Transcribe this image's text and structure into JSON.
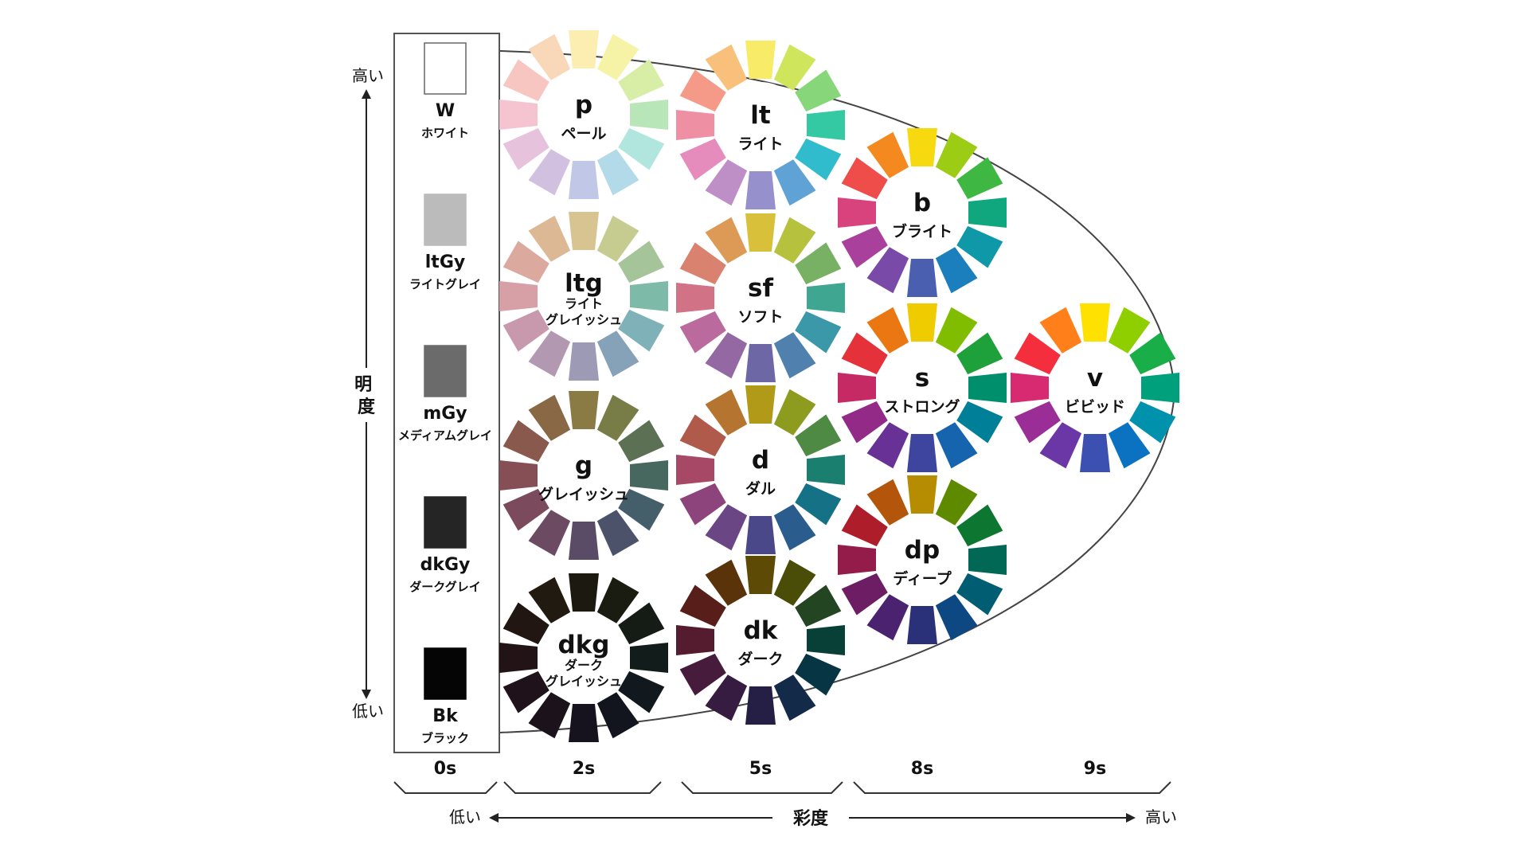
{
  "lightness_axis": {
    "label": "明度",
    "high": "高い",
    "low": "低い"
  },
  "saturation_axis": {
    "label": "彩度",
    "low": "低い",
    "high": "高い"
  },
  "saturation_levels": [
    "0s",
    "2s",
    "5s",
    "8s",
    "9s"
  ],
  "grays": [
    {
      "code": "W",
      "name": "ホワイト",
      "color": "#ffffff"
    },
    {
      "code": "ltGy",
      "name": "ライトグレイ",
      "color": "#bbbbbb"
    },
    {
      "code": "mGy",
      "name": "メディアムグレイ",
      "color": "#6b6b6b"
    },
    {
      "code": "dkGy",
      "name": "ダークグレイ",
      "color": "#252525"
    },
    {
      "code": "Bk",
      "name": "ブラック",
      "color": "#050505"
    }
  ],
  "tones": [
    {
      "code": "p",
      "name": "ペール",
      "saturation": "2s",
      "colors": [
        "#fbeeb0",
        "#f6f3a6",
        "#d8eda6",
        "#b8e6b9",
        "#b0e6de",
        "#b3dae8",
        "#c1c7e6",
        "#d2c0e0",
        "#e6c2dc",
        "#f6c3d1",
        "#f8c6c0",
        "#f8d8b8"
      ]
    },
    {
      "code": "lt",
      "name": "ライト",
      "saturation": "5s",
      "colors": [
        "#f8eb68",
        "#cfe55b",
        "#87d67a",
        "#34c9a2",
        "#30bccd",
        "#5fa3d6",
        "#9690cc",
        "#be8ec6",
        "#e68cbd",
        "#ef8fa3",
        "#f59a88",
        "#f8c07a"
      ]
    },
    {
      "code": "ltg",
      "name": "ライト\nグレイッシュ",
      "saturation": "2s",
      "colors": [
        "#d8c490",
        "#c6cc90",
        "#a6c49a",
        "#7ebaa8",
        "#7fb2b8",
        "#86a2b8",
        "#9c9ab4",
        "#b298b0",
        "#c898ac",
        "#d6a0a6",
        "#dca99e",
        "#dcb894"
      ]
    },
    {
      "code": "sf",
      "name": "ソフト",
      "saturation": "5s",
      "colors": [
        "#d9c03b",
        "#b6c13e",
        "#79b164",
        "#3fa791",
        "#3a98a8",
        "#5081ae",
        "#6e67a6",
        "#9468a2",
        "#ba6a9c",
        "#d27287",
        "#d98270",
        "#dc9a56"
      ]
    },
    {
      "code": "g",
      "name": "グレイッシュ",
      "saturation": "2s",
      "colors": [
        "#8a7a44",
        "#787d47",
        "#5c7054",
        "#47685f",
        "#455f6a",
        "#4b526a",
        "#5a4c66",
        "#6b4a62",
        "#7b4a5c",
        "#864f55",
        "#88594c",
        "#896846"
      ]
    },
    {
      "code": "d",
      "name": "ダル",
      "saturation": "5s",
      "colors": [
        "#b19a17",
        "#8d9b1e",
        "#4f8a44",
        "#1a7f6e",
        "#157185",
        "#2a5d8d",
        "#4a4889",
        "#6b4685",
        "#8d447c",
        "#a74867",
        "#b05a4b",
        "#b57530"
      ]
    },
    {
      "code": "dkg",
      "name": "ダーク\nグレイッシュ",
      "saturation": "2s",
      "colors": [
        "#1c1a10",
        "#1a1c12",
        "#151c16",
        "#121c1b",
        "#12191e",
        "#13151e",
        "#17131e",
        "#1b121c",
        "#20121a",
        "#221416",
        "#221612",
        "#211a10"
      ]
    },
    {
      "code": "dk",
      "name": "ダーク",
      "saturation": "5s",
      "colors": [
        "#5c4a05",
        "#4a4d08",
        "#244521",
        "#083f37",
        "#083543",
        "#132a48",
        "#261f45",
        "#371c42",
        "#471b3c",
        "#541c2e",
        "#581f1a",
        "#5a330a"
      ]
    },
    {
      "code": "b",
      "name": "ブライト",
      "saturation": "8s",
      "colors": [
        "#f6d90f",
        "#9ccc14",
        "#3fb843",
        "#10a77e",
        "#0f98a8",
        "#1b7ebd",
        "#4a5fb0",
        "#7a4aa8",
        "#a8409c",
        "#d8437e",
        "#ee4d4a",
        "#f48a1f"
      ]
    },
    {
      "code": "s",
      "name": "ストロング",
      "saturation": "8s",
      "colors": [
        "#efcc00",
        "#80bd00",
        "#1ea13b",
        "#008f6d",
        "#007f98",
        "#1564ad",
        "#3d459f",
        "#673195",
        "#932a87",
        "#c52a64",
        "#e4313a",
        "#eb7712"
      ]
    },
    {
      "code": "dp",
      "name": "ディープ",
      "saturation": "8s",
      "colors": [
        "#b68c00",
        "#5e8a00",
        "#0d7630",
        "#006854",
        "#005d72",
        "#0d4883",
        "#2a3178",
        "#4b2270",
        "#6d1d64",
        "#941c4a",
        "#ad1d2a",
        "#b3550a"
      ]
    },
    {
      "code": "v",
      "name": "ビビッド",
      "saturation": "9s",
      "colors": [
        "#ffe100",
        "#8fcf00",
        "#1aae48",
        "#00a07d",
        "#0092ad",
        "#0b72c2",
        "#3c50b2",
        "#6b37a6",
        "#9b2d96",
        "#d72a71",
        "#f52e3e",
        "#ff801a"
      ]
    }
  ]
}
